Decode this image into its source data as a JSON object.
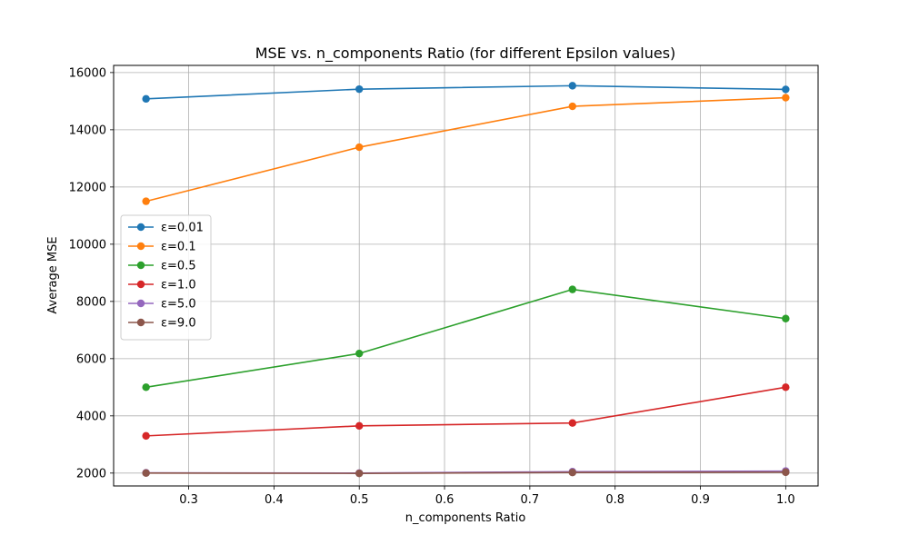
{
  "chart_data": {
    "type": "line",
    "title": "MSE vs. n_components Ratio (for different Epsilon values)",
    "xlabel": "n_components Ratio",
    "ylabel": "Average MSE",
    "x": [
      0.25,
      0.5,
      0.75,
      1.0
    ],
    "xlim": [
      0.212,
      1.038
    ],
    "ylim": [
      1550,
      16250
    ],
    "xticks": [
      0.3,
      0.4,
      0.5,
      0.6,
      0.7,
      0.8,
      0.9,
      1.0
    ],
    "xtick_labels": [
      "0.3",
      "0.4",
      "0.5",
      "0.6",
      "0.7",
      "0.8",
      "0.9",
      "1.0"
    ],
    "yticks": [
      2000,
      4000,
      6000,
      8000,
      10000,
      12000,
      14000,
      16000
    ],
    "ytick_labels": [
      "2000",
      "4000",
      "6000",
      "8000",
      "10000",
      "12000",
      "14000",
      "16000"
    ],
    "grid": true,
    "legend_position": "center-left",
    "series": [
      {
        "name": "ε=0.01",
        "color": "#1f77b4",
        "values": [
          15080,
          15420,
          15540,
          15410
        ]
      },
      {
        "name": "ε=0.1",
        "color": "#ff7f0e",
        "values": [
          11500,
          13390,
          14820,
          15120
        ]
      },
      {
        "name": "ε=0.5",
        "color": "#2ca02c",
        "values": [
          5000,
          6180,
          8420,
          7400
        ]
      },
      {
        "name": "ε=1.0",
        "color": "#d62728",
        "values": [
          3300,
          3650,
          3750,
          5000
        ]
      },
      {
        "name": "ε=5.0",
        "color": "#9467bd",
        "values": [
          2010,
          2000,
          2050,
          2070
        ]
      },
      {
        "name": "ε=9.0",
        "color": "#8c564b",
        "values": [
          2000,
          1990,
          2020,
          2030
        ]
      }
    ]
  }
}
